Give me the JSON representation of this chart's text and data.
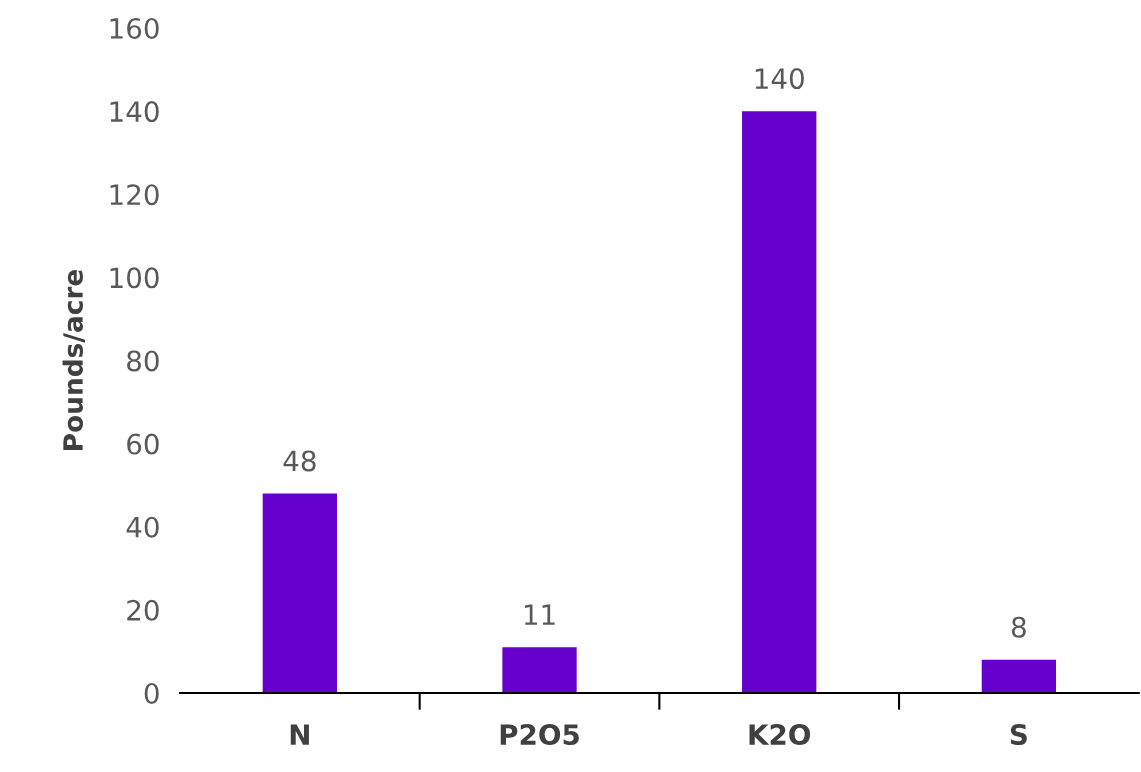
{
  "chart_data": {
    "type": "bar",
    "ylabel": "Pounds/acre",
    "categories": [
      "N",
      "P2O5",
      "K2O",
      "S"
    ],
    "values": [
      48,
      11,
      140,
      8
    ],
    "color": "#6600cc",
    "ylim": [
      0,
      160
    ],
    "yticks": [
      0,
      20,
      40,
      60,
      80,
      100,
      120,
      140,
      160
    ],
    "data_labels": true,
    "grid": false,
    "legend": false
  }
}
